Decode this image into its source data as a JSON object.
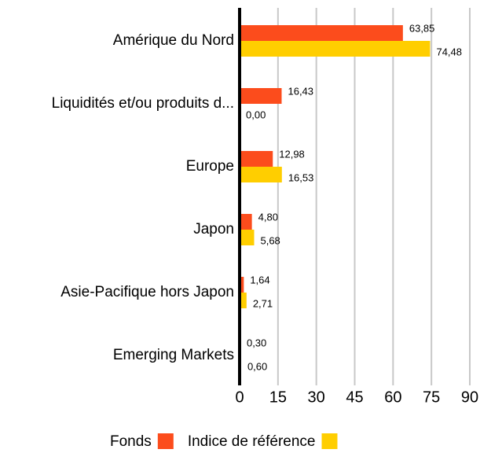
{
  "chart_data": {
    "type": "bar",
    "orientation": "horizontal",
    "categories": [
      "Amérique du Nord",
      "Liquidités et/ou produits d...",
      "Europe",
      "Japon",
      "Asie-Pacifique hors Japon",
      "Emerging Markets"
    ],
    "series": [
      {
        "name": "Fonds",
        "color": "#fc4c1c",
        "values": [
          63.85,
          16.43,
          12.98,
          4.8,
          1.64,
          0.3
        ],
        "value_labels": [
          "63,85",
          "16,43",
          "12,98",
          "4,80",
          "1,64",
          "0,30"
        ]
      },
      {
        "name": "Indice de référence",
        "color": "#ffce00",
        "values": [
          74.48,
          0.0,
          16.53,
          5.68,
          2.71,
          0.6
        ],
        "value_labels": [
          "74,48",
          "0,00",
          "16,53",
          "5,68",
          "2,71",
          "0,60"
        ]
      }
    ],
    "xlim": [
      0,
      90
    ],
    "xticks": [
      0,
      15,
      30,
      45,
      60,
      75,
      90
    ],
    "grid": true
  }
}
